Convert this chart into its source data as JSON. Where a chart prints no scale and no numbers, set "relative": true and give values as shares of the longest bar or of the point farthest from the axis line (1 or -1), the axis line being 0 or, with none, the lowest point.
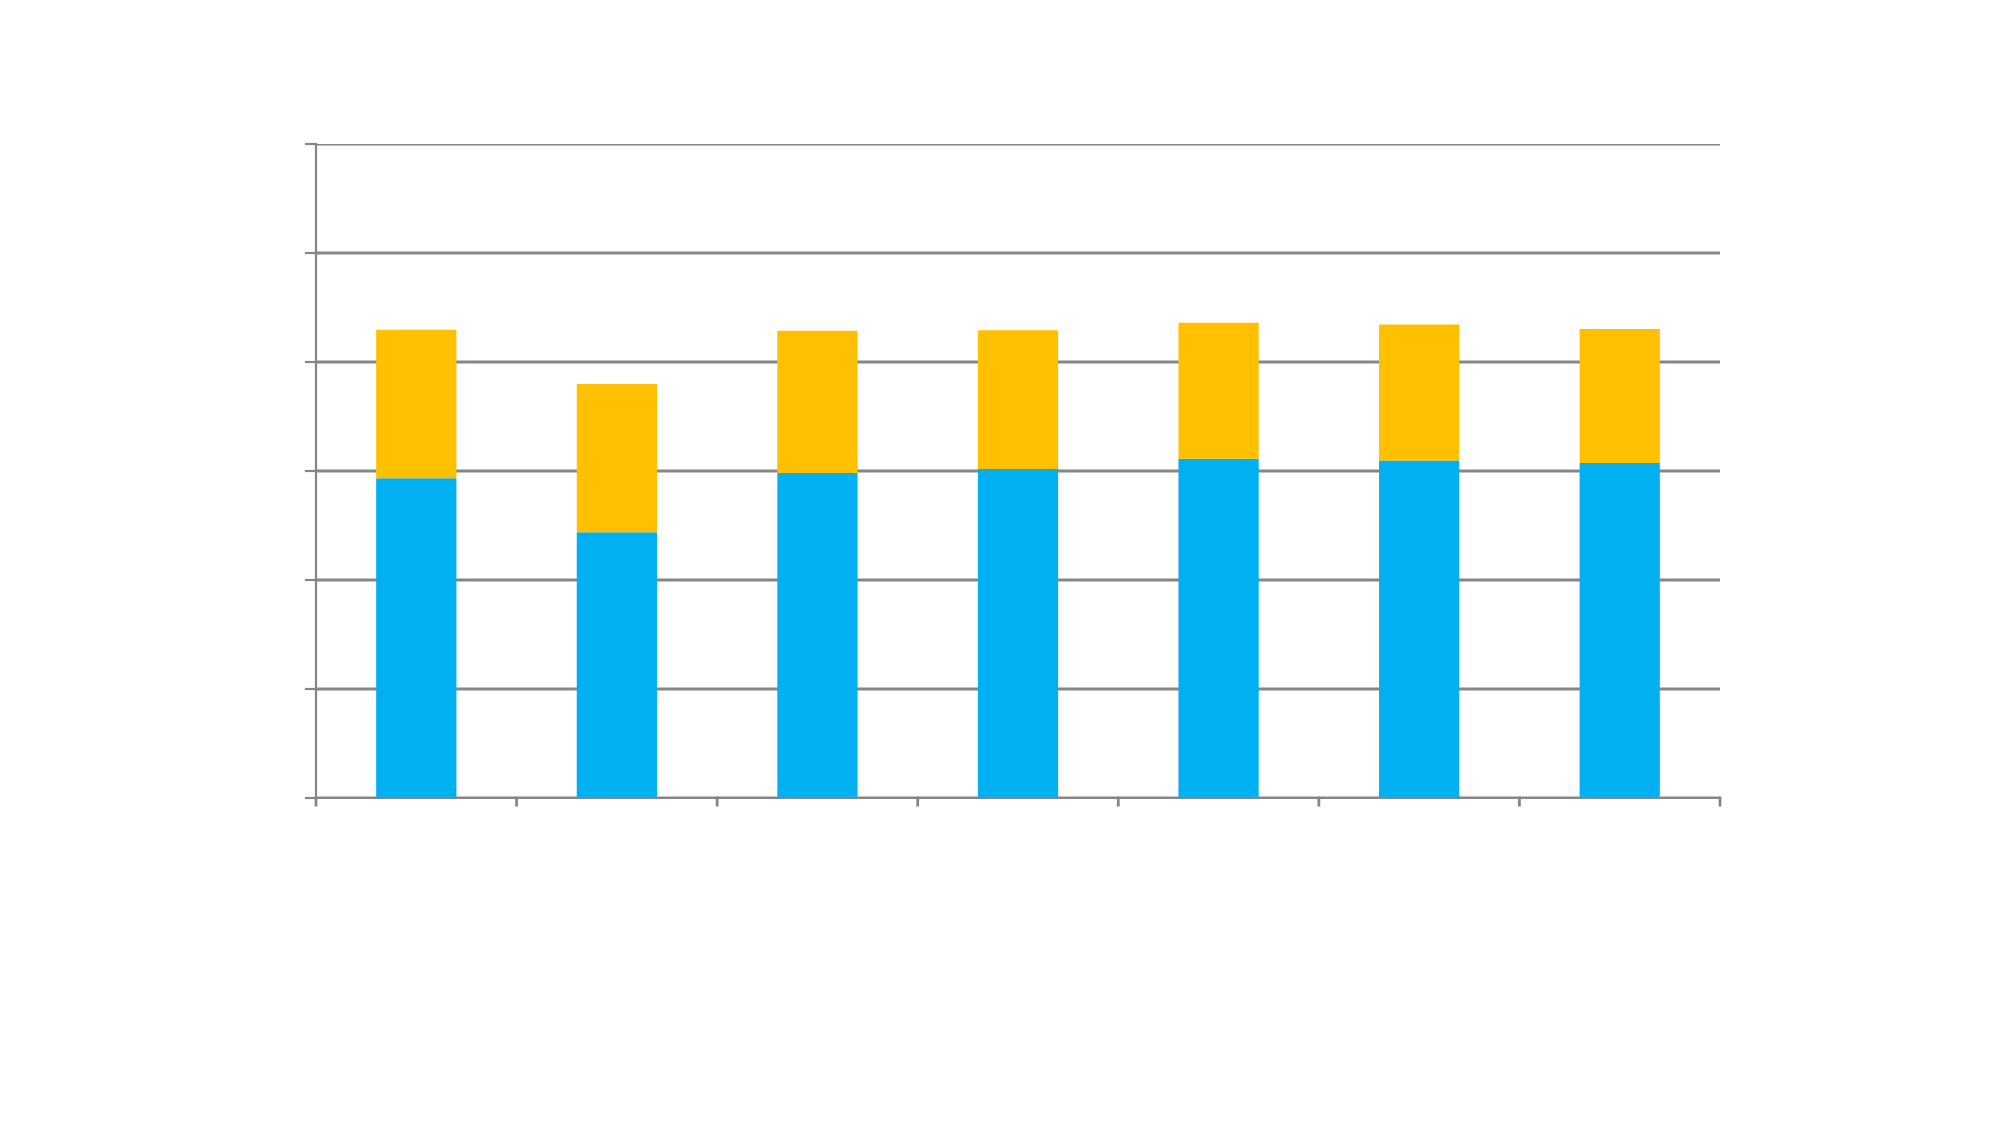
{
  "chart_data": {
    "type": "bar",
    "stacked": true,
    "relative": true,
    "grid": "y",
    "categories": [
      null,
      null,
      null,
      null,
      null,
      null,
      null
    ],
    "series": [
      {
        "color": "#00b0f0",
        "values": [
          0.673,
          0.559,
          0.684,
          0.692,
          0.714,
          0.71,
          0.705
        ]
      },
      {
        "color": "#ffc000",
        "values": [
          0.312,
          0.312,
          0.299,
          0.292,
          0.286,
          0.286,
          0.282
        ]
      }
    ]
  }
}
